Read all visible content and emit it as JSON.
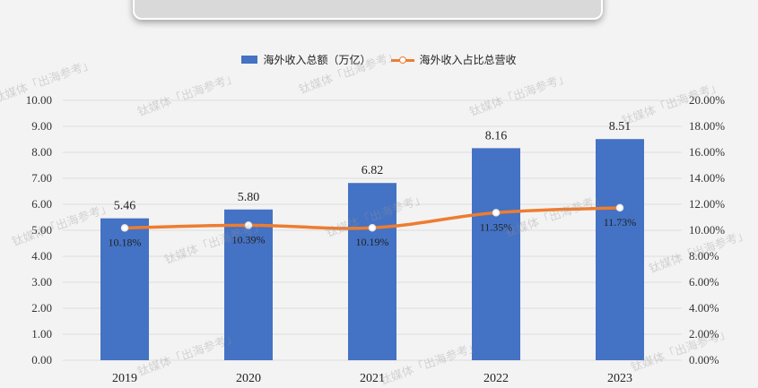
{
  "header": {
    "title": ""
  },
  "watermark_text": "钛媒体「出海参考」",
  "colors": {
    "bar": "#4472c4",
    "line": "#ed7d31",
    "axis_text": "#333333",
    "grid": "#dcdcdc"
  },
  "chart_data": {
    "type": "bar+line",
    "categories": [
      "2019",
      "2020",
      "2021",
      "2022",
      "2023"
    ],
    "series": [
      {
        "name": "海外收入总额（万亿）",
        "type": "bar",
        "axis": "left",
        "values": [
          5.46,
          5.8,
          6.82,
          8.16,
          8.51
        ],
        "labels": [
          "5.46",
          "5.80",
          "6.82",
          "8.16",
          "8.51"
        ]
      },
      {
        "name": "海外收入占比总营收",
        "type": "line",
        "axis": "right",
        "values": [
          10.18,
          10.39,
          10.19,
          11.35,
          11.73
        ],
        "labels": [
          "10.18%",
          "10.39%",
          "10.19%",
          "11.35%",
          "11.73%"
        ]
      }
    ],
    "ylim_left": [
      0,
      10
    ],
    "ylim_right": [
      0,
      20
    ],
    "yticks_left": [
      "0.00",
      "1.00",
      "2.00",
      "3.00",
      "4.00",
      "5.00",
      "6.00",
      "7.00",
      "8.00",
      "9.00",
      "10.00"
    ],
    "yticks_right": [
      "0.00%",
      "2.00%",
      "4.00%",
      "6.00%",
      "8.00%",
      "10.00%",
      "12.00%",
      "14.00%",
      "16.00%",
      "18.00%",
      "20.00%"
    ],
    "grid": true,
    "legend_position": "top-center"
  }
}
